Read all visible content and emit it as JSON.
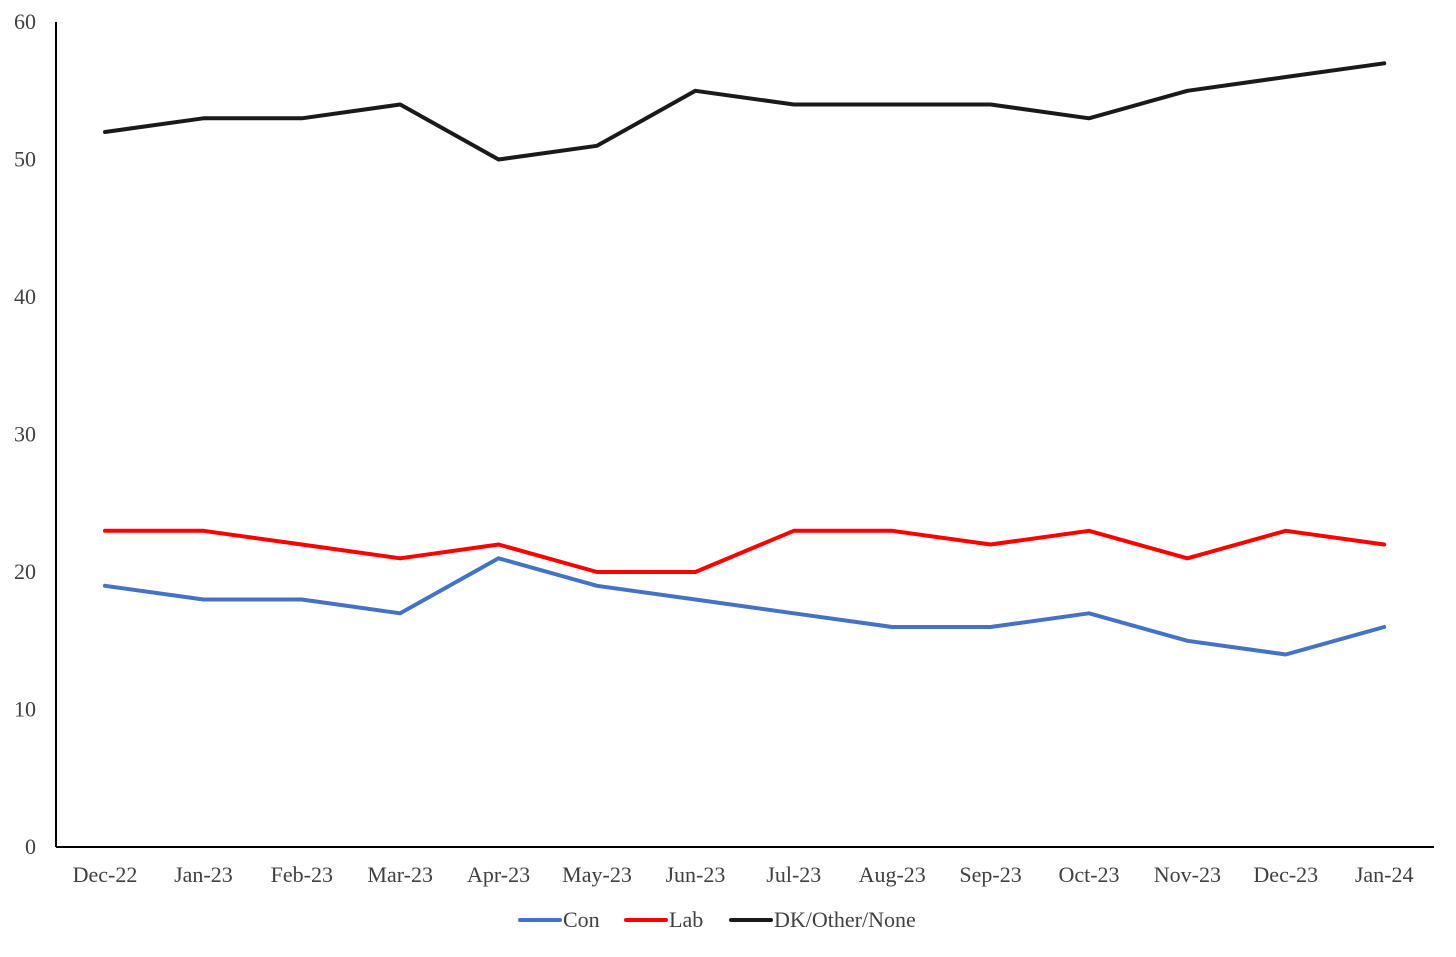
{
  "chart_data": {
    "type": "line",
    "title": "",
    "xlabel": "",
    "ylabel": "",
    "categories": [
      "Dec-22",
      "Jan-23",
      "Feb-23",
      "Mar-23",
      "Apr-23",
      "May-23",
      "Jun-23",
      "Jul-23",
      "Aug-23",
      "Sep-23",
      "Oct-23",
      "Nov-23",
      "Dec-23",
      "Jan-24"
    ],
    "ylim": [
      0,
      60
    ],
    "yticks": [
      "0",
      "10",
      "20",
      "30",
      "40",
      "50",
      "60"
    ],
    "grid": false,
    "legend_position": "bottom-center",
    "series": [
      {
        "name": "Con",
        "color": "#4472C4",
        "values": [
          19,
          18,
          18,
          17,
          21,
          19,
          18,
          17,
          16,
          16,
          17,
          15,
          14,
          16
        ]
      },
      {
        "name": "Lab",
        "color": "#FF0000",
        "values": [
          23,
          23,
          22,
          21,
          22,
          20,
          20,
          23,
          23,
          22,
          23,
          21,
          23,
          22
        ]
      },
      {
        "name": "DK/Other/None",
        "color": "#1a1a1a",
        "values": [
          52,
          53,
          53,
          54,
          50,
          51,
          55,
          54,
          54,
          54,
          53,
          55,
          56,
          57
        ]
      }
    ]
  }
}
